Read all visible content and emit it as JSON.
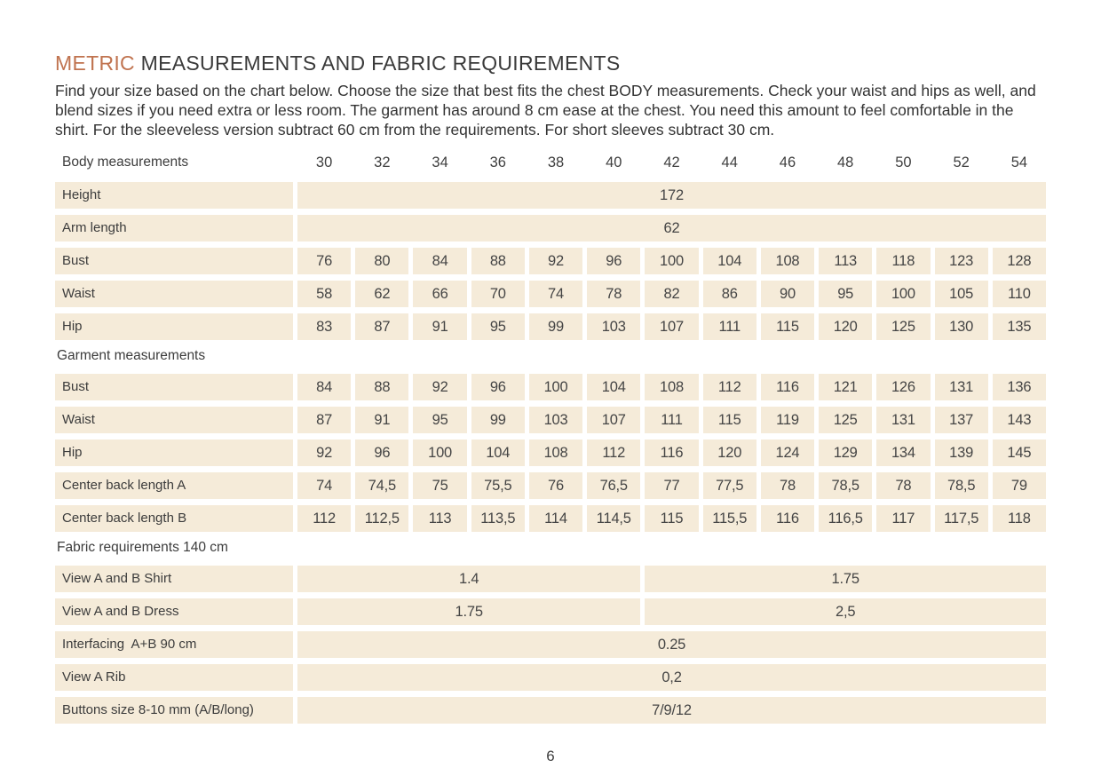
{
  "page": {
    "title_accent": "METRIC",
    "title_rest": "MEASUREMENTS AND FABRIC REQUIREMENTS",
    "intro": "Find your size based on the chart below. Choose the size that best fits the chest BODY measurements.  Check your waist and hips as well, and blend sizes if you need extra or less room. The garment has around 8 cm ease at the chest. You need this amount to feel comfortable in the shirt. For the sleeveless version subtract 60 cm from the requirements. For short sleeves subtract 30 cm.",
    "page_number": "6",
    "colors": {
      "accent": "#c0734f",
      "cell_bg": "#f5ebd9",
      "text": "#3c3c3c"
    }
  },
  "table": {
    "header_label": "Body measurements",
    "sizes": [
      "30",
      "32",
      "34",
      "36",
      "38",
      "40",
      "42",
      "44",
      "46",
      "48",
      "50",
      "52",
      "54"
    ],
    "rows": [
      {
        "type": "full",
        "label": "Height",
        "value": "172"
      },
      {
        "type": "full",
        "label": "Arm length",
        "value": "62"
      },
      {
        "type": "cols",
        "label": "Bust",
        "values": [
          "76",
          "80",
          "84",
          "88",
          "92",
          "96",
          "100",
          "104",
          "108",
          "113",
          "118",
          "123",
          "128"
        ]
      },
      {
        "type": "cols",
        "label": "Waist",
        "values": [
          "58",
          "62",
          "66",
          "70",
          "74",
          "78",
          "82",
          "86",
          "90",
          "95",
          "100",
          "105",
          "110"
        ]
      },
      {
        "type": "cols",
        "label": "Hip",
        "values": [
          "83",
          "87",
          "91",
          "95",
          "99",
          "103",
          "107",
          "111",
          "115",
          "120",
          "125",
          "130",
          "135"
        ]
      },
      {
        "type": "section",
        "label": "Garment measurements"
      },
      {
        "type": "cols",
        "label": "Bust",
        "values": [
          "84",
          "88",
          "92",
          "96",
          "100",
          "104",
          "108",
          "112",
          "116",
          "121",
          "126",
          "131",
          "136"
        ]
      },
      {
        "type": "cols",
        "label": "Waist",
        "values": [
          "87",
          "91",
          "95",
          "99",
          "103",
          "107",
          "111",
          "115",
          "119",
          "125",
          "131",
          "137",
          "143"
        ]
      },
      {
        "type": "cols",
        "label": "Hip",
        "values": [
          "92",
          "96",
          "100",
          "104",
          "108",
          "112",
          "116",
          "120",
          "124",
          "129",
          "134",
          "139",
          "145"
        ]
      },
      {
        "type": "cols",
        "label": "Center back length A",
        "values": [
          "74",
          "74,5",
          "75",
          "75,5",
          "76",
          "76,5",
          "77",
          "77,5",
          "78",
          "78,5",
          "78",
          "78,5",
          "79"
        ]
      },
      {
        "type": "cols",
        "label": "Center back length B",
        "values": [
          "112",
          "112,5",
          "113",
          "113,5",
          "114",
          "114,5",
          "115",
          "115,5",
          "116",
          "116,5",
          "117",
          "117,5",
          "118"
        ]
      },
      {
        "type": "section",
        "label": "Fabric requirements 140 cm"
      },
      {
        "type": "split",
        "label": "View A and B Shirt",
        "values": [
          "1.4",
          "1.75"
        ],
        "spans": [
          6,
          7
        ]
      },
      {
        "type": "split",
        "label": "View A and B Dress",
        "values": [
          "1.75",
          "2,5"
        ],
        "spans": [
          6,
          7
        ]
      },
      {
        "type": "full",
        "label": "Interfacing  A+B 90 cm",
        "value": "0.25"
      },
      {
        "type": "full",
        "label": "View A Rib",
        "value": "0,2"
      },
      {
        "type": "full",
        "label": "Buttons size 8-10 mm (A/B/long)",
        "value": "7/9/12"
      }
    ]
  }
}
